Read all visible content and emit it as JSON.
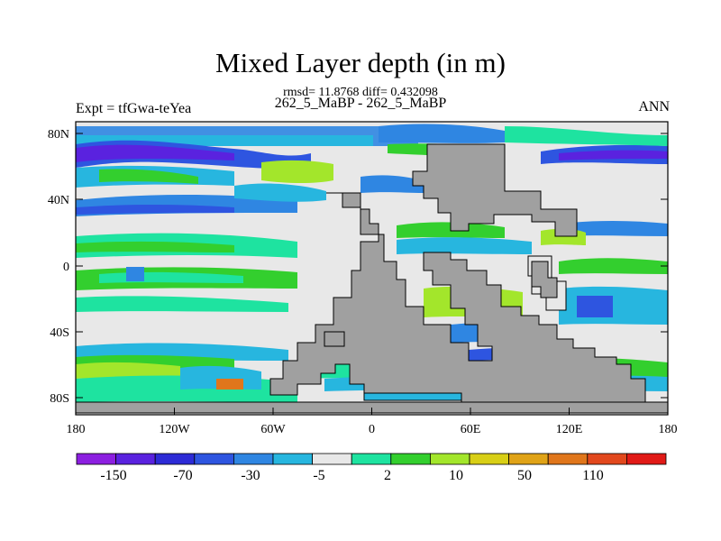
{
  "header": {
    "title": "Mixed Layer depth (in m)",
    "stats_line": "rmsd= 11.8768 diff= 0.432098",
    "case_line": "262_5_MaBP - 262_5_MaBP",
    "left_label": "Expt = tfGwa-teYea",
    "right_label": "ANN"
  },
  "axes": {
    "y_ticks": [
      "80N",
      "40N",
      "0",
      "40S",
      "80S"
    ],
    "x_ticks": [
      "180",
      "120W",
      "60W",
      "0",
      "60E",
      "120E",
      "180"
    ]
  },
  "colorbar": {
    "colors": [
      "#8c1fe0",
      "#5a22df",
      "#2d2bd6",
      "#2e55e0",
      "#2f86e2",
      "#27b6df",
      "#e8e8e8",
      "#1ee3a0",
      "#33cf2e",
      "#a3e62b",
      "#d8cf16",
      "#e0a317",
      "#e0761b",
      "#e2481d",
      "#e11a17"
    ],
    "labels": [
      "-150",
      "-70",
      "-30",
      "-5",
      "2",
      "10",
      "50",
      "110"
    ]
  },
  "legend_palette": {
    "land": "#a0a0a0",
    "zero": "#e8e8e8"
  }
}
